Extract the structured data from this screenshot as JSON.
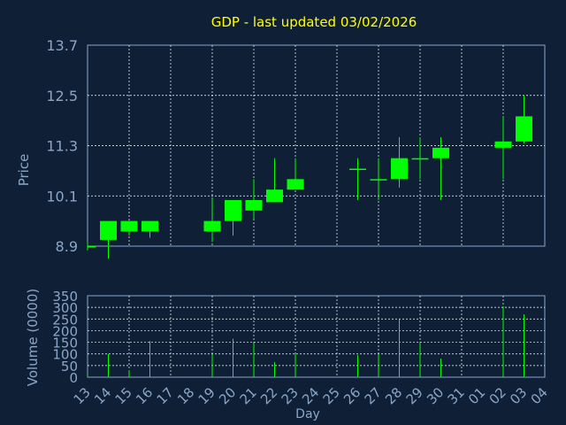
{
  "chart_data": [
    {
      "type": "candlestick",
      "title": "GDP - last updated 03/02/2026",
      "ylabel": "Price",
      "ylim": [
        8.9,
        13.7
      ],
      "yticks": [
        8.9,
        10.1,
        11.3,
        12.5,
        13.7
      ],
      "grid": true,
      "colors": {
        "candle": "#00ff00",
        "title": "#ffff00",
        "axis_text": "#8aa6c8",
        "grid": "#ffffff",
        "background": "#0f2036"
      },
      "categories": [
        "13",
        "14",
        "15",
        "16",
        "17",
        "18",
        "19",
        "20",
        "21",
        "22",
        "23",
        "24",
        "25",
        "26",
        "27",
        "28",
        "29",
        "30",
        "31",
        "01",
        "02",
        "03",
        "04"
      ],
      "candles": [
        {
          "day": "13",
          "open": 8.9,
          "close": 8.9,
          "high": 9.0,
          "low": 8.8
        },
        {
          "day": "14",
          "open": 9.05,
          "close": 9.5,
          "high": 9.5,
          "low": 8.6
        },
        {
          "day": "15",
          "open": 9.25,
          "close": 9.5,
          "high": 9.5,
          "low": 9.15
        },
        {
          "day": "16",
          "open": 9.25,
          "close": 9.5,
          "high": 9.5,
          "low": 9.1
        },
        {
          "day": "19",
          "open": 9.25,
          "close": 9.5,
          "high": 10.05,
          "low": 9.0
        },
        {
          "day": "20",
          "open": 9.5,
          "close": 10.0,
          "high": 10.0,
          "low": 9.15
        },
        {
          "day": "21",
          "open": 9.75,
          "close": 10.0,
          "high": 10.5,
          "low": 9.55
        },
        {
          "day": "22",
          "open": 9.95,
          "close": 10.25,
          "high": 11.0,
          "low": 9.95
        },
        {
          "day": "23",
          "open": 10.25,
          "close": 10.5,
          "high": 11.0,
          "low": 10.25
        },
        {
          "day": "26",
          "open": 10.75,
          "close": 10.75,
          "high": 11.0,
          "low": 10.0
        },
        {
          "day": "27",
          "open": 10.5,
          "close": 10.5,
          "high": 11.0,
          "low": 10.0
        },
        {
          "day": "28",
          "open": 10.5,
          "close": 11.0,
          "high": 11.5,
          "low": 10.3
        },
        {
          "day": "29",
          "open": 11.0,
          "close": 11.0,
          "high": 11.5,
          "low": 10.5
        },
        {
          "day": "30",
          "open": 11.0,
          "close": 11.25,
          "high": 11.5,
          "low": 10.0
        },
        {
          "day": "02",
          "open": 11.25,
          "close": 11.4,
          "high": 12.0,
          "low": 10.5
        },
        {
          "day": "03",
          "open": 11.4,
          "close": 12.0,
          "high": 12.5,
          "low": 11.35
        }
      ]
    },
    {
      "type": "bar",
      "ylabel": "Volume (0000)",
      "xlabel": "Day",
      "ylim": [
        0,
        350
      ],
      "yticks": [
        0,
        50,
        100,
        150,
        200,
        250,
        300,
        350
      ],
      "grid": true,
      "categories": [
        "13",
        "14",
        "15",
        "16",
        "17",
        "18",
        "19",
        "20",
        "21",
        "22",
        "23",
        "24",
        "25",
        "26",
        "27",
        "28",
        "29",
        "30",
        "31",
        "01",
        "02",
        "03",
        "04"
      ],
      "volumes": [
        {
          "day": "13",
          "value": 10
        },
        {
          "day": "14",
          "value": 100
        },
        {
          "day": "15",
          "value": 30
        },
        {
          "day": "16",
          "value": 155
        },
        {
          "day": "19",
          "value": 100
        },
        {
          "day": "20",
          "value": 165
        },
        {
          "day": "21",
          "value": 145
        },
        {
          "day": "22",
          "value": 65
        },
        {
          "day": "23",
          "value": 100
        },
        {
          "day": "26",
          "value": 95
        },
        {
          "day": "27",
          "value": 100
        },
        {
          "day": "28",
          "value": 250
        },
        {
          "day": "29",
          "value": 150
        },
        {
          "day": "30",
          "value": 80
        },
        {
          "day": "02",
          "value": 305
        },
        {
          "day": "03",
          "value": 270
        }
      ]
    }
  ]
}
